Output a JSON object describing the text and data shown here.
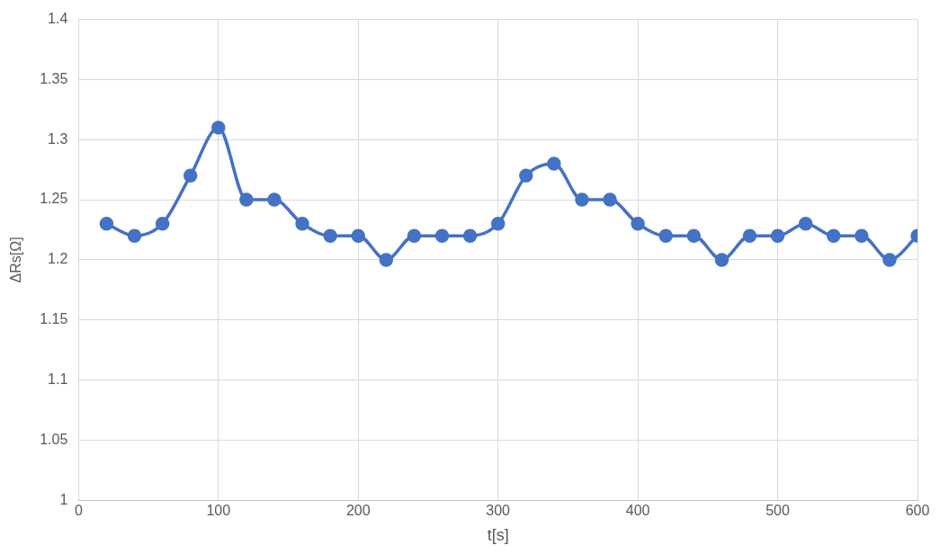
{
  "chart_data": {
    "type": "line",
    "xlabel": "t[s]",
    "ylabel": "ΔRs[Ω]",
    "x": [
      20,
      40,
      60,
      80,
      100,
      120,
      140,
      160,
      180,
      200,
      220,
      240,
      260,
      280,
      300,
      320,
      340,
      360,
      380,
      400,
      420,
      440,
      460,
      480,
      500,
      520,
      540,
      560,
      580,
      600
    ],
    "series": [
      {
        "color": "#4472c4",
        "values": [
          1.23,
          1.22,
          1.23,
          1.27,
          1.31,
          1.25,
          1.25,
          1.23,
          1.22,
          1.22,
          1.2,
          1.22,
          1.22,
          1.22,
          1.23,
          1.27,
          1.28,
          1.25,
          1.25,
          1.23,
          1.22,
          1.22,
          1.2,
          1.22,
          1.22,
          1.23,
          1.22,
          1.22,
          1.2,
          1.22
        ]
      }
    ],
    "xlim": [
      0,
      600
    ],
    "xticks": [
      0,
      100,
      200,
      300,
      400,
      500,
      600
    ],
    "ylim": [
      1,
      1.4
    ],
    "yticks": [
      1,
      1.05,
      1.1,
      1.15,
      1.2,
      1.25,
      1.3,
      1.35,
      1.4
    ],
    "grid": true,
    "marker": "circle",
    "line_style": "solid",
    "legend": false
  }
}
